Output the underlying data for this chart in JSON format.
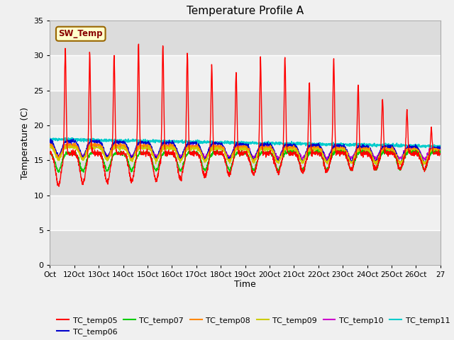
{
  "title": "Temperature Profile A",
  "xlabel": "Time",
  "ylabel": "Temperature (C)",
  "ylim": [
    0,
    35
  ],
  "yticks": [
    0,
    5,
    10,
    15,
    20,
    25,
    30,
    35
  ],
  "x_labels": [
    "Oct",
    "12Oct",
    "13Oct",
    "14Oct",
    "15Oct",
    "16Oct",
    "17Oct",
    "18Oct",
    "19Oct",
    "20Oct",
    "21Oct",
    "22Oct",
    "23Oct",
    "24Oct",
    "25Oct",
    "26Oct",
    "27"
  ],
  "sw_temp_label": "SW_Temp",
  "series_colors": {
    "TC_temp05": "#FF0000",
    "TC_temp06": "#0000CC",
    "TC_temp07": "#00CC00",
    "TC_temp08": "#FF8800",
    "TC_temp09": "#CCCC00",
    "TC_temp10": "#CC00CC",
    "TC_temp11": "#00CCCC"
  },
  "band_colors": [
    "#DCDCDC",
    "#F0F0F0"
  ],
  "sw_box_facecolor": "#FFFFCC",
  "sw_box_edgecolor": "#996600",
  "sw_text_color": "#880000",
  "figure_facecolor": "#F0F0F0",
  "figsize": [
    6.4,
    4.8
  ],
  "dpi": 100
}
